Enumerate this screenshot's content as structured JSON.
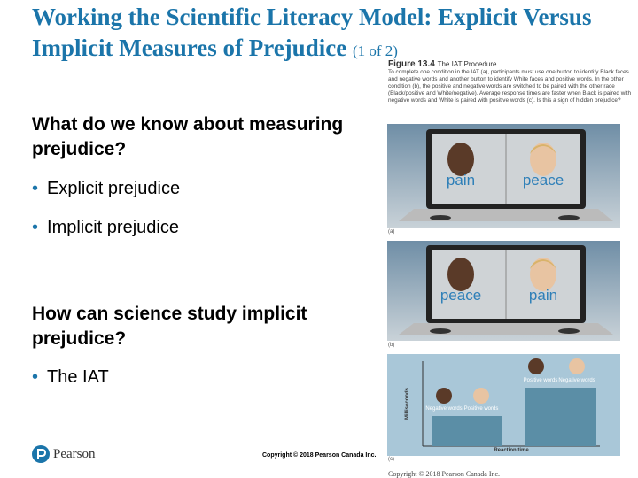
{
  "header": {
    "title": "Working the Scientific Literacy Model: Explicit Versus Implicit Measures of Prejudice",
    "title_suffix": "(1 of 2)"
  },
  "content": {
    "sections": [
      {
        "heading": "What do we know about measuring prejudice?",
        "bullets": [
          "Explicit prejudice",
          "Implicit prejudice"
        ]
      },
      {
        "heading": "How can science study implicit prejudice?",
        "bullets": [
          "The IAT"
        ]
      }
    ]
  },
  "figure": {
    "number": "Figure 13.4",
    "title": "The IAT Procedure",
    "caption": "To complete one condition in the IAT (a), participants must use one button to identify Black faces and negative words and another button to identify White faces and positive words. In the other condition (b), the positive and negative words are switched to be paired with the other race (Black/positive and White/negative). Average response times are faster when Black is paired with negative words and White is paired with positive words (c). Is this a sign of hidden prejudice?",
    "panels": [
      {
        "label": "(a)",
        "left_word": "pain",
        "right_word": "peace"
      },
      {
        "label": "(b)",
        "left_word": "peace",
        "right_word": "pain"
      },
      {
        "label": "(c)",
        "y_label": "Milliseconds",
        "x_label": "Reaction time",
        "bars": [
          {
            "left_label": "Negative words",
            "right_label": "Positive words"
          },
          {
            "left_label": "Positive words",
            "right_label": "Negative words"
          }
        ]
      }
    ],
    "copyright": "Copyright © 2018 Pearson Canada Inc."
  },
  "footer": {
    "logo": "Pearson",
    "copyright": "Copyright © 2018 Pearson Canada Inc."
  }
}
